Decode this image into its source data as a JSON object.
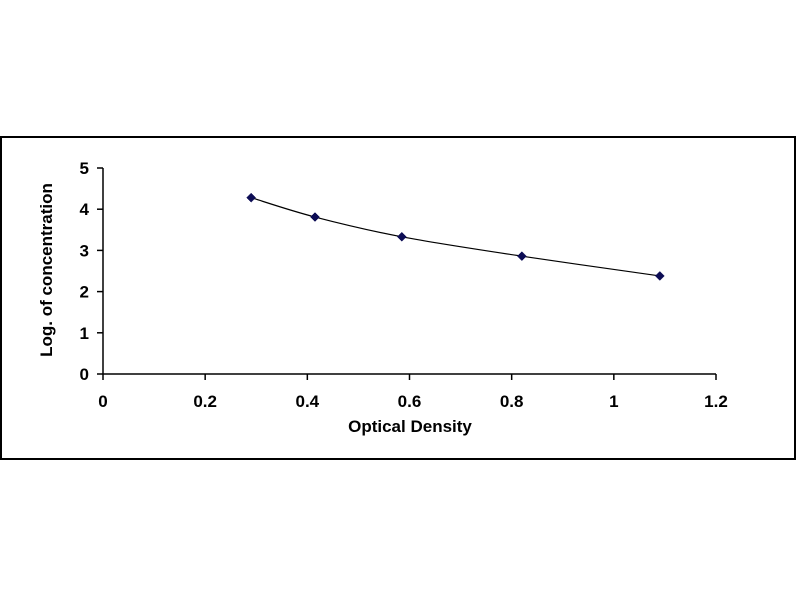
{
  "chart_data": {
    "type": "scatter",
    "xlabel": "Optical Density",
    "ylabel": "Log. of concentration",
    "xlim": [
      0,
      1.2
    ],
    "ylim": [
      0,
      5
    ],
    "xticks": [
      "0",
      "0.2",
      "0.4",
      "0.6",
      "0.8",
      "1",
      "1.2"
    ],
    "yticks": [
      "0",
      "1",
      "2",
      "3",
      "4",
      "5"
    ],
    "grid": false,
    "legend": "none",
    "series": [
      {
        "marker": "diamond",
        "line": "smooth",
        "color": "#0d0d55",
        "x": [
          0.29,
          0.415,
          0.585,
          0.82,
          1.09
        ],
        "y": [
          4.28,
          3.81,
          3.33,
          2.86,
          2.38
        ]
      }
    ]
  }
}
